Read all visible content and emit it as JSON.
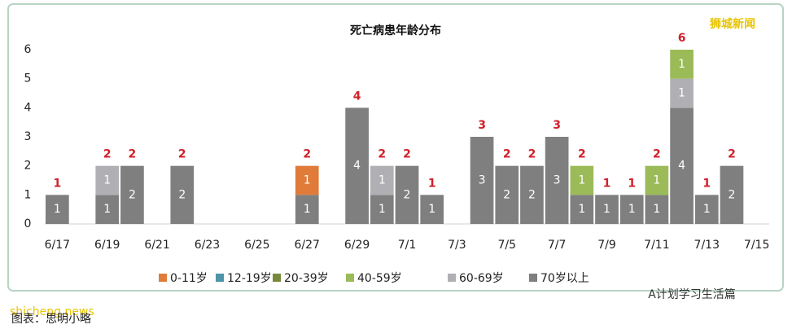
{
  "chart_data": {
    "type": "stacked_bar",
    "title": "死亡病患年龄分布",
    "categories": [
      "6/17",
      null,
      "6/19",
      null,
      "6/21",
      null,
      "6/23",
      null,
      "6/25",
      null,
      "6/27",
      null,
      "6/29",
      null,
      "7/1",
      null,
      "7/3",
      null,
      "7/5",
      null,
      "7/7",
      null,
      "7/9",
      null,
      "7/11",
      null,
      "7/13",
      null,
      "7/15"
    ],
    "series": [
      {
        "name": "0-11岁",
        "color": "#e07b39",
        "values": [
          null,
          null,
          null,
          null,
          null,
          null,
          null,
          null,
          null,
          null,
          1,
          null,
          null,
          null,
          null,
          null,
          null,
          null,
          null,
          null,
          null,
          null,
          null,
          null,
          null,
          null,
          null,
          null,
          null
        ]
      },
      {
        "name": "12-19岁",
        "color": "#4e95a8",
        "values": [
          null,
          null,
          null,
          null,
          null,
          null,
          null,
          null,
          null,
          null,
          null,
          null,
          null,
          null,
          null,
          null,
          null,
          null,
          null,
          null,
          null,
          null,
          null,
          null,
          null,
          null,
          null,
          null,
          null
        ]
      },
      {
        "name": "20-39岁",
        "color": "#77893a",
        "values": [
          null,
          null,
          null,
          null,
          null,
          null,
          null,
          null,
          null,
          null,
          null,
          null,
          null,
          null,
          null,
          null,
          null,
          null,
          null,
          null,
          null,
          null,
          null,
          null,
          null,
          null,
          null,
          null,
          null
        ]
      },
      {
        "name": "40-59岁",
        "color": "#9bbb59",
        "values": [
          null,
          null,
          null,
          null,
          null,
          null,
          null,
          null,
          null,
          null,
          null,
          null,
          null,
          null,
          null,
          null,
          null,
          null,
          null,
          null,
          null,
          1,
          null,
          null,
          1,
          1,
          null,
          null,
          null
        ]
      },
      {
        "name": "60-69岁",
        "color": "#b0b0b4",
        "values": [
          null,
          null,
          1,
          null,
          null,
          null,
          null,
          null,
          null,
          null,
          null,
          null,
          null,
          1,
          null,
          null,
          null,
          null,
          null,
          null,
          null,
          null,
          null,
          null,
          null,
          1,
          null,
          null,
          null
        ]
      },
      {
        "name": "70岁以上",
        "color": "#7f7f7f",
        "values": [
          1,
          null,
          1,
          2,
          null,
          2,
          null,
          null,
          null,
          null,
          1,
          null,
          4,
          1,
          2,
          1,
          null,
          3,
          2,
          2,
          3,
          1,
          1,
          1,
          1,
          4,
          1,
          2,
          null
        ]
      }
    ],
    "totals": [
      1,
      null,
      2,
      2,
      null,
      2,
      null,
      null,
      null,
      null,
      2,
      null,
      4,
      2,
      2,
      1,
      null,
      3,
      2,
      2,
      3,
      2,
      1,
      1,
      2,
      6,
      1,
      2,
      null
    ],
    "ylim": [
      0,
      6
    ],
    "yticks": [
      0,
      1,
      2,
      3,
      4,
      5,
      6
    ],
    "watermarks": [
      "狮城新闻",
      "shicheng.news",
      "A计划学习生活篇"
    ],
    "caption": "图表：思明小略"
  }
}
